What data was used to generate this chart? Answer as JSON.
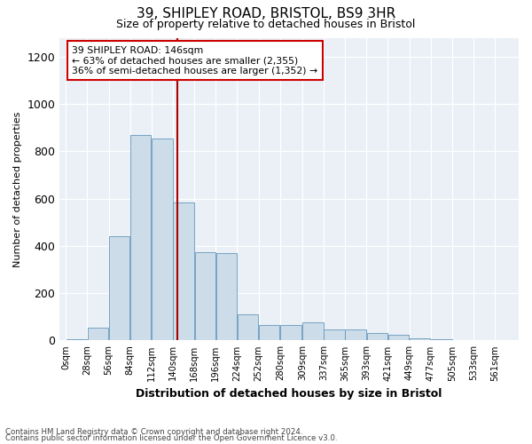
{
  "title1": "39, SHIPLEY ROAD, BRISTOL, BS9 3HR",
  "title2": "Size of property relative to detached houses in Bristol",
  "xlabel": "Distribution of detached houses by size in Bristol",
  "ylabel": "Number of detached properties",
  "annotation_line1": "39 SHIPLEY ROAD: 146sqm",
  "annotation_line2": "← 63% of detached houses are smaller (2,355)",
  "annotation_line3": "36% of semi-detached houses are larger (1,352) →",
  "property_size": 146,
  "bar_color": "#ccdce8",
  "bar_edge_color": "#6699bb",
  "vline_color": "#aa0000",
  "background_color": "#eaf0f6",
  "categories": [
    "0sqm",
    "28sqm",
    "56sqm",
    "84sqm",
    "112sqm",
    "140sqm",
    "168sqm",
    "196sqm",
    "224sqm",
    "252sqm",
    "280sqm",
    "309sqm",
    "337sqm",
    "365sqm",
    "393sqm",
    "421sqm",
    "449sqm",
    "477sqm",
    "505sqm",
    "533sqm",
    "561sqm"
  ],
  "bin_edges": [
    0,
    28,
    56,
    84,
    112,
    140,
    168,
    196,
    224,
    252,
    280,
    309,
    337,
    365,
    393,
    421,
    449,
    477,
    505,
    533,
    561,
    589
  ],
  "values": [
    5,
    55,
    440,
    870,
    855,
    585,
    375,
    370,
    110,
    65,
    65,
    75,
    45,
    45,
    32,
    25,
    10,
    5,
    2,
    1,
    1
  ],
  "ylim": [
    0,
    1280
  ],
  "yticks": [
    0,
    200,
    400,
    600,
    800,
    1000,
    1200
  ],
  "footnote1": "Contains HM Land Registry data © Crown copyright and database right 2024.",
  "footnote2": "Contains public sector information licensed under the Open Government Licence v3.0."
}
